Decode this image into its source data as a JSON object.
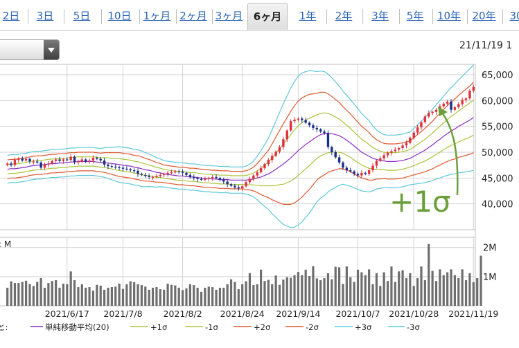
{
  "tabs": [
    {
      "label": "2日"
    },
    {
      "label": "3日"
    },
    {
      "label": "5日"
    },
    {
      "label": "10日"
    },
    {
      "label": "1ヶ月"
    },
    {
      "label": "2ヶ月"
    },
    {
      "label": "3ヶ月"
    },
    {
      "label": "6ヶ月",
      "active": true
    },
    {
      "label": "1年"
    },
    {
      "label": "2年"
    },
    {
      "label": "3年"
    },
    {
      "label": "5年"
    },
    {
      "label": "10年"
    },
    {
      "label": "20年"
    },
    {
      "label": "30"
    }
  ],
  "dropdown": {
    "value": ""
  },
  "date_label": "21/11/19 1",
  "annotation": "+1σ",
  "colors": {
    "up": "#e0303a",
    "down": "#1a2f8a",
    "ma": "#8a2bbf",
    "s1": "#a9c43a",
    "s2": "#e0562e",
    "s3": "#5cc8d8",
    "volume": "#6e6e6e",
    "annotation": "#6a9f3a",
    "grid": "#bdbdbd"
  },
  "volume_axis": {
    "unit_label": ": M",
    "ticks": [
      {
        "value": 2,
        "label": "2M"
      },
      {
        "value": 1,
        "label": "1M"
      }
    ]
  },
  "legend": [
    {
      "label": "単純移動平均(20)",
      "color": "#8a2bbf"
    },
    {
      "label": "+1σ",
      "color": "#a9c43a"
    },
    {
      "label": "-1σ",
      "color": "#a9c43a"
    },
    {
      "label": "+2σ",
      "color": "#e0562e"
    },
    {
      "label": "-2σ",
      "color": "#e0562e"
    },
    {
      "label": "+3σ",
      "color": "#5cc8d8"
    },
    {
      "label": "-3σ",
      "color": "#5cc8d8"
    }
  ],
  "legend_prefix": "と:",
  "chart_data": {
    "type": "candlestick",
    "price_axis": {
      "ylim": [
        35000,
        67000
      ],
      "ticks": [
        65000,
        60000,
        55000,
        50000,
        45000,
        40000
      ],
      "tick_labels": [
        "65,000",
        "60,000",
        "55,000",
        "50,000",
        "45,000",
        "40,000"
      ]
    },
    "x_tick_labels": [
      {
        "label": "2021/6/17",
        "index": 16
      },
      {
        "label": "2021/7/8",
        "index": 31
      },
      {
        "label": "2021/8/2",
        "index": 47
      },
      {
        "label": "2021/8/24",
        "index": 63
      },
      {
        "label": "2021/9/14",
        "index": 78
      },
      {
        "label": "2021/10/7",
        "index": 94
      },
      {
        "label": "2021/10/28",
        "index": 109
      },
      {
        "label": "2021/11/19",
        "index": 125
      }
    ],
    "closes": [
      47800,
      47500,
      48500,
      48800,
      48400,
      48700,
      48200,
      48200,
      48000,
      47000,
      47600,
      47800,
      48300,
      48600,
      48300,
      48600,
      48500,
      49100,
      48100,
      48200,
      48600,
      48200,
      48400,
      48900,
      48700,
      48400,
      47600,
      47300,
      47200,
      47100,
      47000,
      46800,
      46700,
      46500,
      46400,
      45800,
      45600,
      45400,
      45200,
      45200,
      45400,
      45600,
      45800,
      46000,
      46100,
      46300,
      46200,
      46000,
      45600,
      45200,
      45000,
      44800,
      44700,
      44800,
      45000,
      45200,
      45000,
      44700,
      44300,
      43800,
      43500,
      43200,
      43000,
      43400,
      44200,
      44800,
      45500,
      46100,
      46900,
      47700,
      48500,
      49300,
      50100,
      51000,
      52500,
      54200,
      56000,
      56300,
      56500,
      56200,
      55700,
      55200,
      54700,
      54400,
      54000,
      53700,
      51000,
      50000,
      49000,
      48000,
      47000,
      46500,
      46300,
      45800,
      45500,
      46000,
      45800,
      46500,
      47400,
      48300,
      48800,
      49400,
      49900,
      50200,
      50500,
      50800,
      51300,
      51800,
      52800,
      53800,
      54800,
      55800,
      56900,
      57600,
      57800,
      58200,
      58900,
      59400,
      59800,
      58200,
      58700,
      59300,
      60100,
      60400,
      61900,
      62600
    ],
    "volumes_m": [
      0.62,
      0.84,
      0.78,
      0.78,
      0.82,
      0.86,
      0.75,
      0.68,
      0.82,
      0.95,
      0.62,
      0.78,
      0.85,
      0.88,
      0.62,
      0.76,
      0.74,
      1.18,
      0.88,
      0.64,
      0.74,
      0.62,
      0.64,
      0.52,
      0.72,
      0.69,
      0.55,
      0.62,
      0.64,
      0.66,
      0.76,
      0.58,
      0.74,
      0.84,
      0.81,
      0.74,
      0.71,
      0.66,
      0.55,
      0.62,
      0.64,
      0.57,
      0.55,
      0.76,
      0.72,
      0.7,
      0.62,
      0.54,
      0.6,
      0.74,
      0.71,
      0.62,
      0.48,
      0.62,
      0.66,
      0.64,
      0.55,
      0.62,
      0.62,
      0.74,
      0.91,
      0.82,
      0.57,
      0.74,
      0.84,
      1.12,
      0.71,
      0.74,
      1.24,
      0.85,
      0.89,
      0.74,
      1.04,
      0.72,
      0.9,
      0.98,
      0.96,
      1.05,
      1.16,
      1.05,
      1.24,
      1.02,
      1.36,
      0.94,
      0.88,
      0.95,
      1.12,
      0.91,
      1.34,
      1.32,
      0.75,
      1.35,
      0.98,
      0.82,
      1.24,
      1.15,
      1.05,
      1.25,
      0.74,
      1.12,
      0.68,
      1.15,
      0.85,
      1.35,
      0.82,
      1.18,
      1.22,
      0.95,
      1.12,
      0.68,
      0.95,
      1.35,
      0.88,
      2.12,
      1.2,
      0.85,
      1.25,
      1.05,
      1.15,
      1.25,
      1.05,
      0.95,
      1.25,
      0.88,
      1.12,
      0.81,
      0.95,
      1.72
    ],
    "ma20": [
      46700,
      46800,
      46800,
      46900,
      47000,
      47100,
      47300,
      47400,
      47500,
      47500,
      47600,
      47700,
      47800,
      47800,
      47900,
      47900,
      48000,
      48100,
      48100,
      48200,
      48200,
      48200,
      48200,
      48200,
      48100,
      48000,
      48000,
      47900,
      47800,
      47700,
      47600,
      47500,
      47400,
      47300,
      47100,
      47000,
      46800,
      46600,
      46500,
      46300,
      46100,
      46000,
      45800,
      45700,
      45600,
      45500,
      45400,
      45400,
      45300,
      45200,
      45200,
      45100,
      45000,
      44900,
      44900,
      44800,
      44800,
      44700,
      44700,
      44700,
      44600,
      44600,
      44600,
      44600,
      44600,
      44700,
      44800,
      45000,
      45200,
      45500,
      45800,
      46200,
      46700,
      47200,
      47700,
      48300,
      48900,
      49600,
      50300,
      50900,
      51500,
      52000,
      52500,
      53000,
      53400,
      53600,
      53700,
      53600,
      53400,
      53200,
      52800,
      52300,
      51800,
      51200,
      50600,
      50000,
      49600,
      49200,
      48800,
      48600,
      48400,
      48300,
      48200,
      48200,
      48200,
      48300,
      48400,
      48600,
      48800,
      49200,
      49600,
      50000,
      50400,
      50900,
      51400,
      52000,
      52500,
      53100,
      53600,
      54100,
      54500,
      55000,
      55400,
      55800,
      56200,
      56700
    ],
    "sigma": [
      900,
      900,
      900,
      900,
      900,
      900,
      900,
      900,
      900,
      900,
      900,
      900,
      900,
      900,
      900,
      900,
      900,
      900,
      900,
      900,
      900,
      900,
      900,
      900,
      900,
      900,
      950,
      1000,
      1050,
      1100,
      1150,
      1150,
      1150,
      1150,
      1150,
      1150,
      1150,
      1100,
      1050,
      1000,
      950,
      900,
      850,
      850,
      850,
      850,
      850,
      850,
      850,
      850,
      850,
      850,
      850,
      850,
      850,
      850,
      850,
      850,
      850,
      850,
      850,
      850,
      850,
      850,
      900,
      1000,
      1150,
      1400,
      1700,
      2000,
      2300,
      2700,
      3100,
      3500,
      3900,
      4200,
      4500,
      4700,
      4800,
      4800,
      4700,
      4600,
      4400,
      4200,
      4100,
      4000,
      3800,
      3600,
      3400,
      3200,
      3000,
      2900,
      2800,
      2700,
      2600,
      2500,
      2400,
      2300,
      2100,
      1900,
      1800,
      1700,
      1700,
      1700,
      1700,
      1700,
      1700,
      1700,
      1700,
      1800,
      1900,
      2000,
      2100,
      2200,
      2300,
      2400,
      2500,
      2600,
      2700,
      2800,
      2900,
      3000,
      3100,
      3200,
      3300,
      3400
    ]
  }
}
